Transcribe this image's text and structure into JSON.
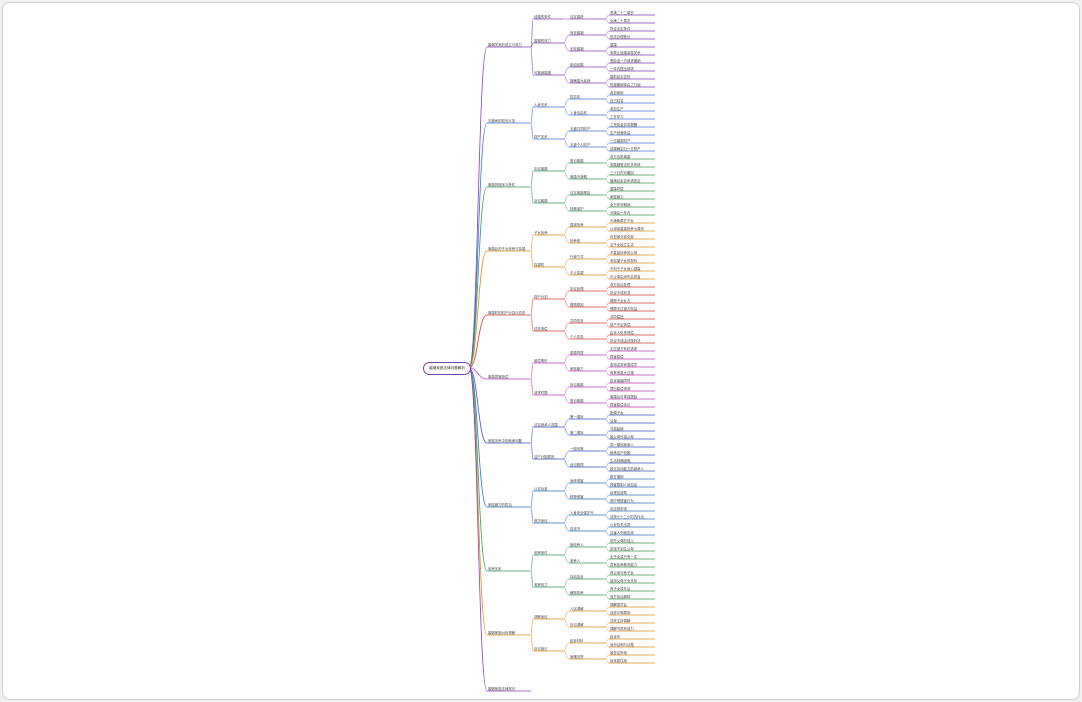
{
  "root": "婚姻家庭法律问题解析",
  "colors": [
    "#7b3fb5",
    "#3d6fd1",
    "#2e9e5b",
    "#e38b14",
    "#d63c2f",
    "#c53fbf",
    "#3a50c5",
    "#2b72c9",
    "#2e9e5b",
    "#e38b14"
  ],
  "branches": [
    {
      "label": "婚姻关系的成立与效力",
      "children": [
        {
          "label": "结婚的条件",
          "children": [
            {
              "label": "法定婚龄",
              "children": [
                "男满二十二周岁",
                "女满二十周岁"
              ]
            }
          ]
        },
        {
          "label": "婚姻的效力",
          "children": [
            {
              "label": "有效婚姻",
              "children": [
                "符合法定条件",
                "依法办理登记"
              ]
            },
            {
              "label": "无效婚姻",
              "children": [
                "重婚",
                "有禁止结婚亲属关系"
              ]
            }
          ]
        },
        {
          "label": "可撤销婚姻",
          "children": [
            {
              "label": "胁迫结婚",
              "children": [
                "受胁迫一方请求撤销",
                "一年内提出请求"
              ]
            },
            {
              "label": "隐瞒重大疾病",
              "children": [
                "婚前如实告知",
                "知道撤销事由之日起"
              ]
            }
          ]
        }
      ]
    },
    {
      "label": "夫妻间的权利义务",
      "children": [
        {
          "label": "人身关系",
          "children": [
            {
              "label": "姓名权",
              "children": [
                "各自使用",
                "自己姓名"
              ]
            },
            {
              "label": "人身自由权",
              "children": [
                "参加生产",
                "工作学习"
              ]
            }
          ]
        },
        {
          "label": "财产关系",
          "children": [
            {
              "label": "夫妻共同财产",
              "children": [
                "工资奖金劳务报酬",
                "生产经营收益"
              ]
            },
            {
              "label": "夫妻个人财产",
              "children": [
                "一方婚前财产",
                "遗嘱确定归一方财产"
              ]
            }
          ]
        }
      ]
    },
    {
      "label": "离婚的程序与条件",
      "children": [
        {
          "label": "协议离婚",
          "children": [
            {
              "label": "登记离婚",
              "children": [
                "双方自愿离婚",
                "到婚姻登记机关申请"
              ]
            },
            {
              "label": "离婚冷静期",
              "children": [
                "三十日内可撤回",
                "届满后亲自申请发证"
              ]
            }
          ]
        },
        {
          "label": "诉讼离婚",
          "children": [
            {
              "label": "法定离婚理由",
              "children": [
                "重婚同居",
                "家庭暴力"
              ]
            },
            {
              "label": "特殊保护",
              "children": [
                "女方怀孕期间",
                "分娩后一年内"
              ]
            }
          ]
        }
      ]
    },
    {
      "label": "离婚后的子女抚养与探望",
      "children": [
        {
          "label": "子女抚养",
          "children": [
            {
              "label": "直接抚养",
              "children": [
                "不满两周岁子女",
                "以母亲直接抚养为原则"
              ]
            },
            {
              "label": "抚养费",
              "children": [
                "负担部分或全部",
                "至子女独立生活"
              ]
            }
          ]
        },
        {
          "label": "探望权",
          "children": [
            {
              "label": "行使方式",
              "children": [
                "不直接抚养的父母",
                "有探望子女的权利"
              ]
            },
            {
              "label": "中止探望",
              "children": [
                "不利于子女身心健康",
                "中止事由消失后恢复"
              ]
            }
          ]
        }
      ]
    },
    {
      "label": "离婚时的财产分割与债务",
      "children": [
        {
          "label": "财产分割",
          "children": [
            {
              "label": "协议处理",
              "children": [
                "双方协议处理",
                "协议不成判决"
              ]
            },
            {
              "label": "照顾原则",
              "children": [
                "照顾子女女方",
                "照顾无过错方权益"
              ]
            }
          ]
        },
        {
          "label": "债务清偿",
          "children": [
            {
              "label": "共同债务",
              "children": [
                "共同偿还",
                "财产不足清偿"
              ]
            },
            {
              "label": "个人债务",
              "children": [
                "由本人负责清偿",
                "协议不成由法院判决"
              ]
            }
          ]
        }
      ]
    },
    {
      "label": "离婚损害赔偿",
      "children": [
        {
          "label": "赔偿情形",
          "children": [
            {
              "label": "重婚同居",
              "children": [
                "无过错方有权请求",
                "损害赔偿"
              ]
            },
            {
              "label": "家庭暴力",
              "children": [
                "虐待遗弃家庭成员",
                "有其他重大过错"
              ]
            }
          ]
        },
        {
          "label": "请求时限",
          "children": [
            {
              "label": "诉讼离婚",
              "children": [
                "起诉离婚同时",
                "提出赔偿请求"
              ]
            },
            {
              "label": "登记离婚",
              "children": [
                "离婚后可单独提起",
                "损害赔偿诉讼"
              ]
            }
          ]
        }
      ]
    },
    {
      "label": "家庭关系中的继承问题",
      "children": [
        {
          "label": "法定继承人范围",
          "children": [
            {
              "label": "第一顺序",
              "children": [
                "配偶子女",
                "父母"
              ]
            },
            {
              "label": "第二顺序",
              "children": [
                "兄弟姐妹",
                "祖父母外祖父母"
              ]
            }
          ]
        },
        {
          "label": "遗产分配原则",
          "children": [
            {
              "label": "一般均等",
              "children": [
                "同一顺序继承人",
                "继承遗产份额"
              ]
            },
            {
              "label": "适当照顾",
              "children": [
                "生活特殊困难",
                "缺乏劳动能力的继承人"
              ]
            }
          ]
        }
      ]
    },
    {
      "label": "家庭暴力的防治",
      "children": [
        {
          "label": "认定标准",
          "children": [
            {
              "label": "身体侵害",
              "children": [
                "殴打捆绑",
                "残害限制人身自由"
              ]
            },
            {
              "label": "精神侵害",
              "children": [
                "经常性谩骂",
                "恐吓等侵害行为"
              ]
            }
          ]
        },
        {
          "label": "救济途径",
          "children": [
            {
              "label": "人身安全保护令",
              "children": [
                "向法院申请",
                "法院七十二小时内作出"
              ]
            },
            {
              "label": "告诫书",
              "children": [
                "公安机关出具",
                "加害人书面告诫"
              ]
            }
          ]
        }
      ]
    },
    {
      "label": "收养关系",
      "children": [
        {
          "label": "收养条件",
          "children": [
            {
              "label": "被收养人",
              "children": [
                "丧失父母的孤儿",
                "查找不到生父母"
              ]
            },
            {
              "label": "收养人",
              "children": [
                "无子女或只有一名",
                "具有抚养教育能力"
              ]
            }
          ]
        },
        {
          "label": "收养效力",
          "children": [
            {
              "label": "拟制血亲",
              "children": [
                "养父母与养子女",
                "适用父母子女关系"
              ]
            },
            {
              "label": "解除收养",
              "children": [
                "养子女成年后",
                "双方协议解除"
              ]
            }
          ]
        }
      ]
    },
    {
      "label": "婚姻家庭纠纷调解",
      "children": [
        {
          "label": "调解途径",
          "children": [
            {
              "label": "人民调解",
              "children": [
                "调解委员会",
                "自愿平等原则"
              ]
            },
            {
              "label": "诉讼调解",
              "children": [
                "法院主持调解",
                "调解书具有效力"
              ]
            }
          ]
        },
        {
          "label": "诉讼指引",
          "children": [
            {
              "label": "起诉材料",
              "children": [
                "起诉状",
                "身份证明与证据"
              ]
            },
            {
              "label": "管辖法院",
              "children": [
                "被告住所地",
                "经常居住地"
              ]
            }
          ]
        }
      ]
    },
    {
      "label": "婚姻家庭法律常识",
      "children": []
    }
  ]
}
